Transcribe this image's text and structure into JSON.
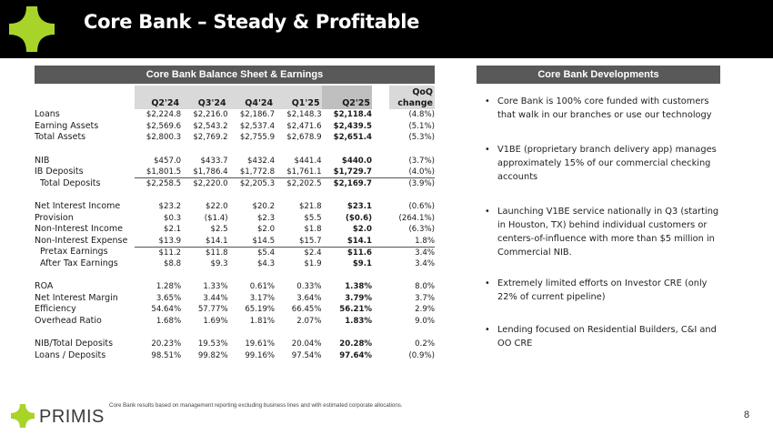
{
  "header": {
    "title": "Core Bank – Steady & Profitable"
  },
  "brand": {
    "accent": "#a8d42a",
    "name": "PRIMIS"
  },
  "table": {
    "section_title": "Core Bank Balance Sheet & Earnings",
    "columns": [
      "Q2'24",
      "Q3'24",
      "Q4'24",
      "Q1'25",
      "Q2'25"
    ],
    "change_header": [
      "QoQ",
      "change"
    ],
    "rows": [
      {
        "label": "Loans",
        "values": [
          "$2,224.8",
          "$2,216.0",
          "$2,186.7",
          "$2,148.3",
          "$2,118.4"
        ],
        "change": "(4.8%)"
      },
      {
        "label": "Earning Assets",
        "values": [
          "$2,569.6",
          "$2,543.2",
          "$2,537.4",
          "$2,471.6",
          "$2,439.5"
        ],
        "change": "(5.1%)"
      },
      {
        "label": "Total Assets",
        "values": [
          "$2,800.3",
          "$2,769.2",
          "$2,755.9",
          "$2,678.9",
          "$2,651.4"
        ],
        "change": "(5.3%)"
      },
      {
        "label": "NIB",
        "values": [
          "$457.0",
          "$433.7",
          "$432.4",
          "$441.4",
          "$440.0"
        ],
        "change": "(3.7%)"
      },
      {
        "label": "IB Deposits",
        "values": [
          "$1,801.5",
          "$1,786.4",
          "$1,772.8",
          "$1,761.1",
          "$1,729.7"
        ],
        "change": "(4.0%)"
      },
      {
        "label": "Total Deposits",
        "values": [
          "$2,258.5",
          "$2,220.0",
          "$2,205.3",
          "$2,202.5",
          "$2,169.7"
        ],
        "change": "(3.9%)"
      },
      {
        "label": "Net Interest Income",
        "values": [
          "$23.2",
          "$22.0",
          "$20.2",
          "$21.8",
          "$23.1"
        ],
        "change": "(0.6%)"
      },
      {
        "label": "Provision",
        "values": [
          "$0.3",
          "($1.4)",
          "$2.3",
          "$5.5",
          "($0.6)"
        ],
        "change": "(264.1%)"
      },
      {
        "label": "Non-Interest Income",
        "values": [
          "$2.1",
          "$2.5",
          "$2.0",
          "$1.8",
          "$2.0"
        ],
        "change": "(6.3%)"
      },
      {
        "label": "Non-Interest Expense",
        "values": [
          "$13.9",
          "$14.1",
          "$14.5",
          "$15.7",
          "$14.1"
        ],
        "change": "1.8%"
      },
      {
        "label": "Pretax Earnings",
        "values": [
          "$11.2",
          "$11.8",
          "$5.4",
          "$2.4",
          "$11.6"
        ],
        "change": "3.4%"
      },
      {
        "label": "After Tax Earnings",
        "values": [
          "$8.8",
          "$9.3",
          "$4.3",
          "$1.9",
          "$9.1"
        ],
        "change": "3.4%"
      },
      {
        "label": "ROA",
        "values": [
          "1.28%",
          "1.33%",
          "0.61%",
          "0.33%",
          "1.38%"
        ],
        "change": "8.0%"
      },
      {
        "label": "Net Interest Margin",
        "values": [
          "3.65%",
          "3.44%",
          "3.17%",
          "3.64%",
          "3.79%"
        ],
        "change": "3.7%"
      },
      {
        "label": "Efficiency",
        "values": [
          "54.64%",
          "57.77%",
          "65.19%",
          "66.45%",
          "56.21%"
        ],
        "change": "2.9%"
      },
      {
        "label": "Overhead Ratio",
        "values": [
          "1.68%",
          "1.69%",
          "1.81%",
          "2.07%",
          "1.83%"
        ],
        "change": "9.0%"
      },
      {
        "label": "NIB/Total Deposits",
        "values": [
          "20.23%",
          "19.53%",
          "19.61%",
          "20.04%",
          "20.28%"
        ],
        "change": "0.2%"
      },
      {
        "label": "Loans / Deposits",
        "values": [
          "98.51%",
          "99.82%",
          "99.16%",
          "97.54%",
          "97.64%"
        ],
        "change": "(0.9%)"
      }
    ]
  },
  "developments": {
    "section_title": "Core Bank Developments",
    "bullets": [
      "Core Bank is 100% core funded with customers that walk in our branches or use our technology",
      "V1BE (proprietary branch delivery app) manages approximately 15% of our commercial checking accounts",
      "Launching V1BE service nationally in Q3 (starting in Houston, TX) behind individual customers or centers-of-influence with more than $5 million in Commercial NIB.",
      "Extremely limited efforts on Investor CRE (only 22% of current pipeline)",
      "Lending focused on Residential Builders, C&I and OO CRE"
    ]
  },
  "footer": {
    "footnote": "Core Bank results based on management reporting excluding business lines and with estimated corporate allocations.",
    "page_number": "8"
  }
}
